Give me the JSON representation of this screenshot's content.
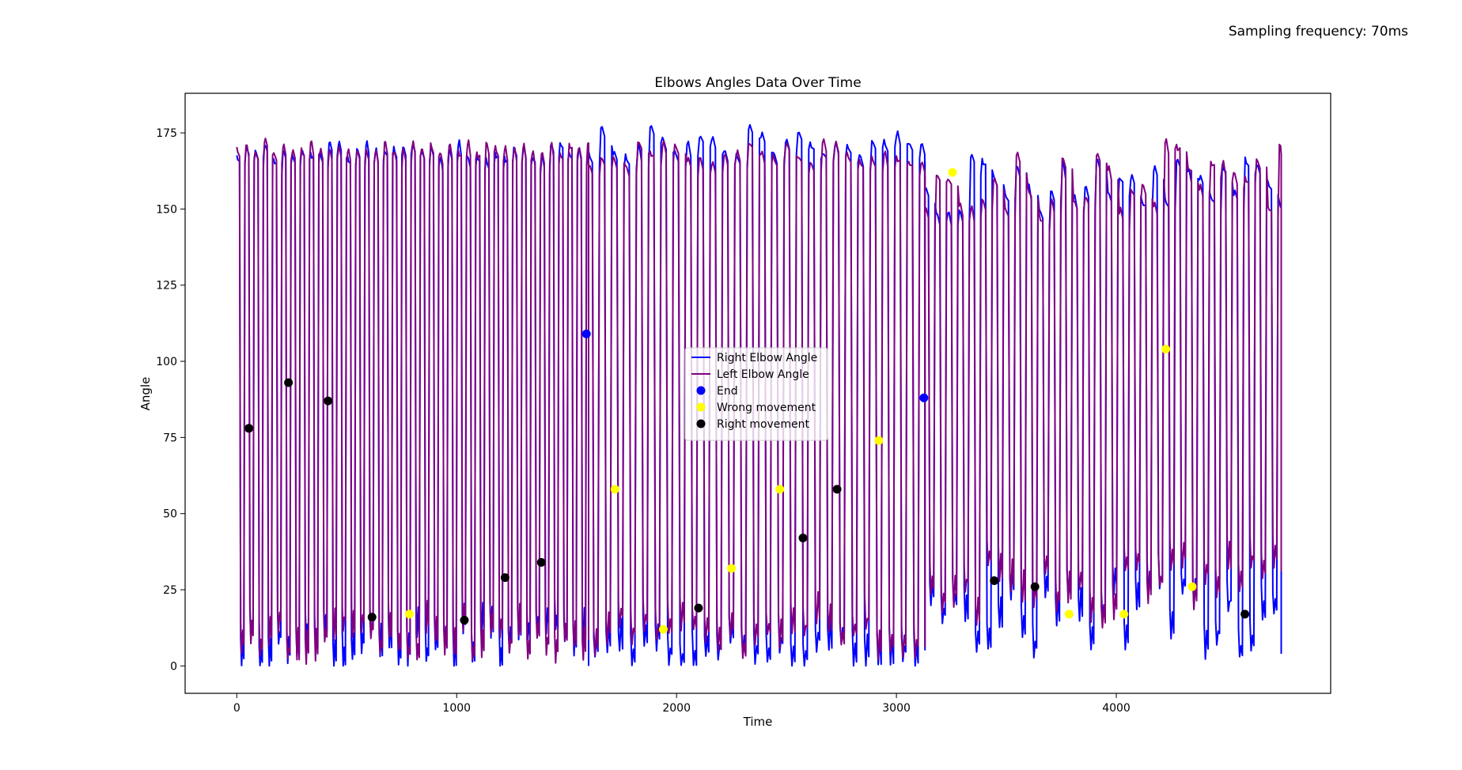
{
  "annotation": "Sampling frequency: 70ms",
  "chart_data": {
    "type": "line",
    "title": "Elbows Angles Data Over Time",
    "xlabel": "Time",
    "ylabel": "Angle",
    "xlim": [
      -235,
      4975
    ],
    "ylim": [
      -9,
      188
    ],
    "xticks": [
      0,
      1000,
      2000,
      3000,
      4000
    ],
    "yticks": [
      0,
      25,
      50,
      75,
      100,
      125,
      150,
      175
    ],
    "grid": false,
    "legend": {
      "placement": "center"
    },
    "series": [
      {
        "name": "Right Elbow Angle",
        "color": "#0000ff",
        "marker": "line",
        "segments": [
          {
            "x_start": 0,
            "x_end": 1600,
            "period": 42,
            "high": 169,
            "low": 5,
            "high_jitter": 3,
            "low_jitter": 7
          },
          {
            "x_start": 1600,
            "x_end": 3130,
            "period": 56,
            "high": 172,
            "low": 3,
            "high_jitter": 5,
            "low_jitter": 5
          },
          {
            "x_start": 3130,
            "x_end": 4750,
            "period": 52,
            "high": 158,
            "low": 14,
            "high_jitter": 10,
            "low_jitter": 12
          }
        ]
      },
      {
        "name": "Left Elbow Angle",
        "color": "#800080",
        "marker": "line",
        "segments": [
          {
            "x_start": 0,
            "x_end": 1600,
            "period": 42,
            "high": 170,
            "low": 6,
            "high_jitter": 2,
            "low_jitter": 6
          },
          {
            "x_start": 1600,
            "x_end": 3130,
            "period": 56,
            "high": 168,
            "low": 8,
            "high_jitter": 4,
            "low_jitter": 6
          },
          {
            "x_start": 3130,
            "x_end": 4750,
            "period": 52,
            "high": 160,
            "low": 22,
            "high_jitter": 12,
            "low_jitter": 12
          }
        ]
      },
      {
        "name": "End",
        "color": "#0000ff",
        "marker": "dot",
        "points": [
          [
            1590,
            109
          ],
          [
            3125,
            88
          ]
        ]
      },
      {
        "name": "Wrong movement",
        "color": "#ffff00",
        "marker": "dot",
        "points": [
          [
            785,
            17
          ],
          [
            1720,
            58
          ],
          [
            1940,
            12
          ],
          [
            2250,
            32
          ],
          [
            2470,
            58
          ],
          [
            2920,
            74
          ],
          [
            3255,
            162
          ],
          [
            3785,
            17
          ],
          [
            4035,
            17
          ],
          [
            4225,
            104
          ],
          [
            4345,
            26
          ]
        ]
      },
      {
        "name": "Right movement",
        "color": "#000000",
        "marker": "dot",
        "points": [
          [
            55,
            78
          ],
          [
            235,
            93
          ],
          [
            415,
            87
          ],
          [
            615,
            16
          ],
          [
            1035,
            15
          ],
          [
            1220,
            29
          ],
          [
            1385,
            34
          ],
          [
            2100,
            19
          ],
          [
            2575,
            42
          ],
          [
            2730,
            58
          ],
          [
            3445,
            28
          ],
          [
            3630,
            26
          ],
          [
            4585,
            17
          ]
        ]
      }
    ]
  }
}
